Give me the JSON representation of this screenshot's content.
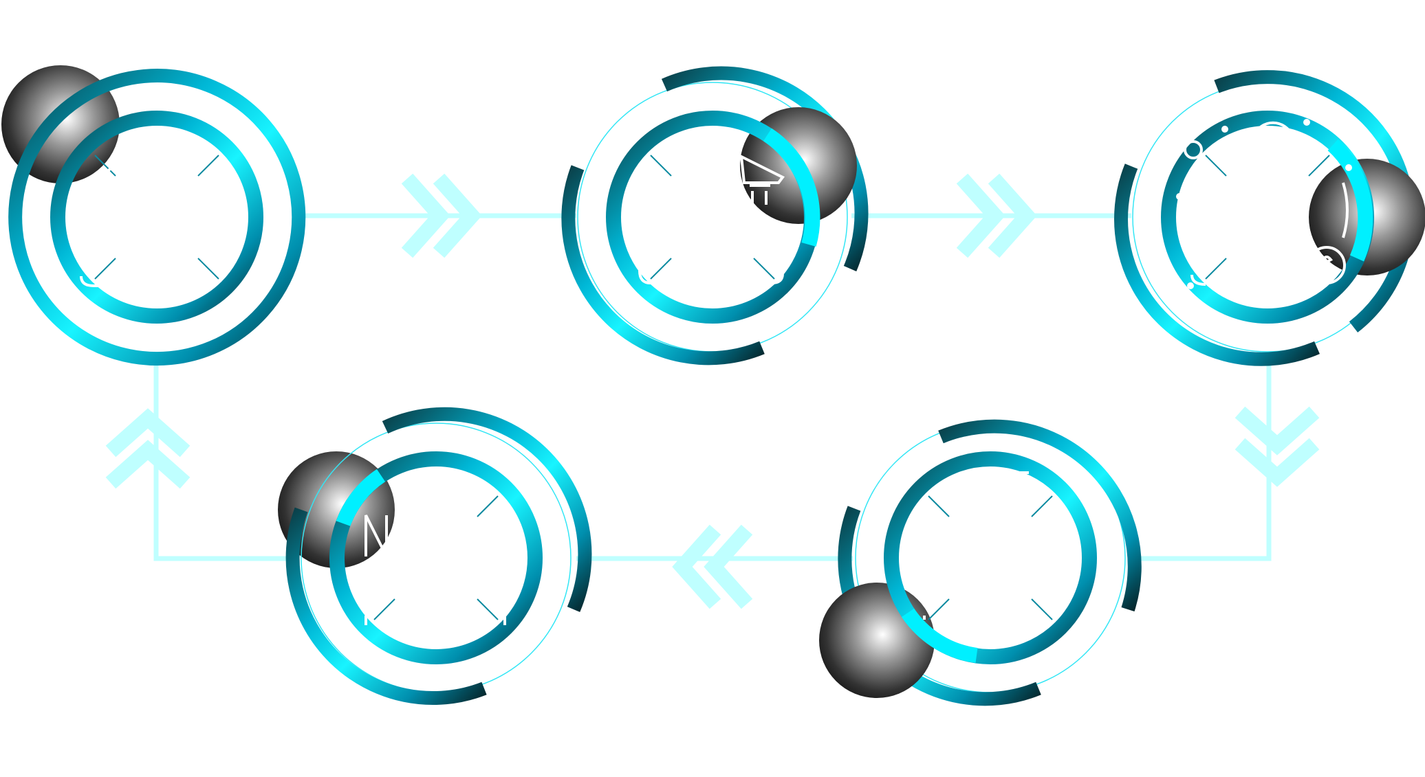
{
  "diagram": {
    "kind": "cyclic-process",
    "stage_count": 5,
    "flow_direction": "clockwise",
    "colors": {
      "ring": "#00b7d6",
      "ring_highlight": "#00f0ff",
      "ring_dark": "#05262c",
      "connector": "#bfffff",
      "thin_arc": "#33e6f5",
      "sphere_light": "#ffffff",
      "sphere_dark": "#101010",
      "icon": "#ffffff"
    },
    "stages": [
      {
        "id": "stage-1",
        "position": "top-left",
        "sphere_corner": "upper-left",
        "icon": "people-icon"
      },
      {
        "id": "stage-2",
        "position": "top-center",
        "sphere_corner": "upper-right",
        "icon": "megaphone-icon"
      },
      {
        "id": "stage-3",
        "position": "top-right",
        "sphere_corner": "right",
        "icon": "money-network-icon"
      },
      {
        "id": "stage-4",
        "position": "bottom-right",
        "sphere_corner": "lower-left",
        "icon": "target-icon"
      },
      {
        "id": "stage-5",
        "position": "bottom-center",
        "sphere_corner": "upper-left",
        "icon": "document-icon"
      }
    ],
    "connectors": [
      {
        "from": "stage-1",
        "to": "stage-2",
        "arrow": "double-chevron-right"
      },
      {
        "from": "stage-2",
        "to": "stage-3",
        "arrow": "double-chevron-right"
      },
      {
        "from": "stage-3",
        "to": "stage-4",
        "arrow": "double-chevron-down"
      },
      {
        "from": "stage-4",
        "to": "stage-5",
        "arrow": "double-chevron-left"
      },
      {
        "from": "stage-5",
        "to": "stage-1",
        "arrow": "double-chevron-up"
      }
    ]
  }
}
